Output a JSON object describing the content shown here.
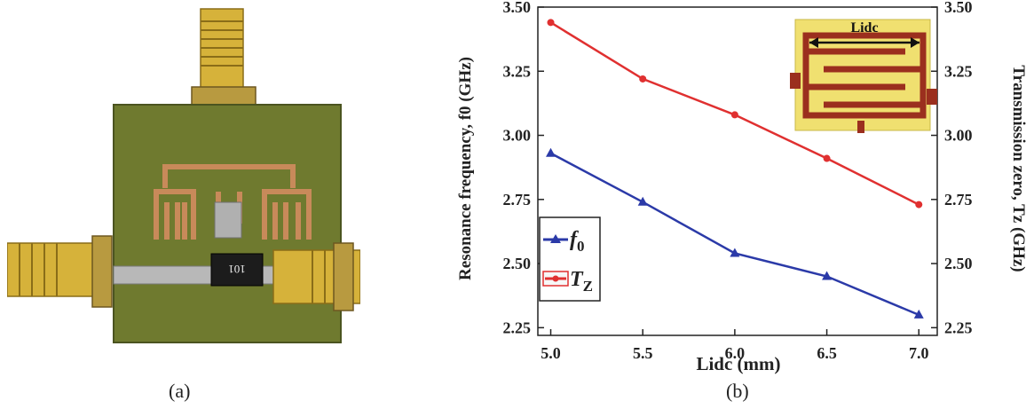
{
  "panels": {
    "a": {
      "caption": "(a)"
    },
    "b": {
      "caption": "(b)"
    }
  },
  "photo": {
    "component_label": "101"
  },
  "colors": {
    "series_f0": "#2b3aa8",
    "series_tz": "#e03030",
    "pcb": "#6f7a2f",
    "copper": "#c88a5a",
    "connector_gold": "#d6b23a"
  },
  "chart_data": {
    "type": "line",
    "x": [
      5.0,
      5.5,
      6.0,
      6.5,
      7.0
    ],
    "x_tick_labels": [
      "5.0",
      "5.5",
      "6.0",
      "6.5",
      "7.0"
    ],
    "xlim": [
      4.93,
      7.1
    ],
    "xlabel": "Lidc (mm)",
    "ylabel_left": "Resonance frequency, f0 (GHz)",
    "ylabel_right": "Transmission zero, Tz (GHz)",
    "ylim": [
      2.22,
      3.5
    ],
    "y_ticks": [
      2.25,
      2.5,
      2.75,
      3.0,
      3.25,
      3.5
    ],
    "y_tick_labels": [
      "2.25",
      "2.50",
      "2.75",
      "3.00",
      "3.25",
      "3.50"
    ],
    "grid": false,
    "legend_position": "bottom-left",
    "series": [
      {
        "name": "f0",
        "label_main": "f",
        "label_sub": "0",
        "axis": "left",
        "marker": "triangle",
        "color": "#2b3aa8",
        "values": [
          2.93,
          2.74,
          2.54,
          2.45,
          2.3
        ]
      },
      {
        "name": "Tz",
        "label_main": "T",
        "label_sub": "Z",
        "axis": "right",
        "marker": "circle",
        "color": "#e03030",
        "values": [
          3.44,
          3.22,
          3.08,
          2.91,
          2.73
        ]
      }
    ],
    "inset": {
      "label": "Lidc"
    }
  }
}
